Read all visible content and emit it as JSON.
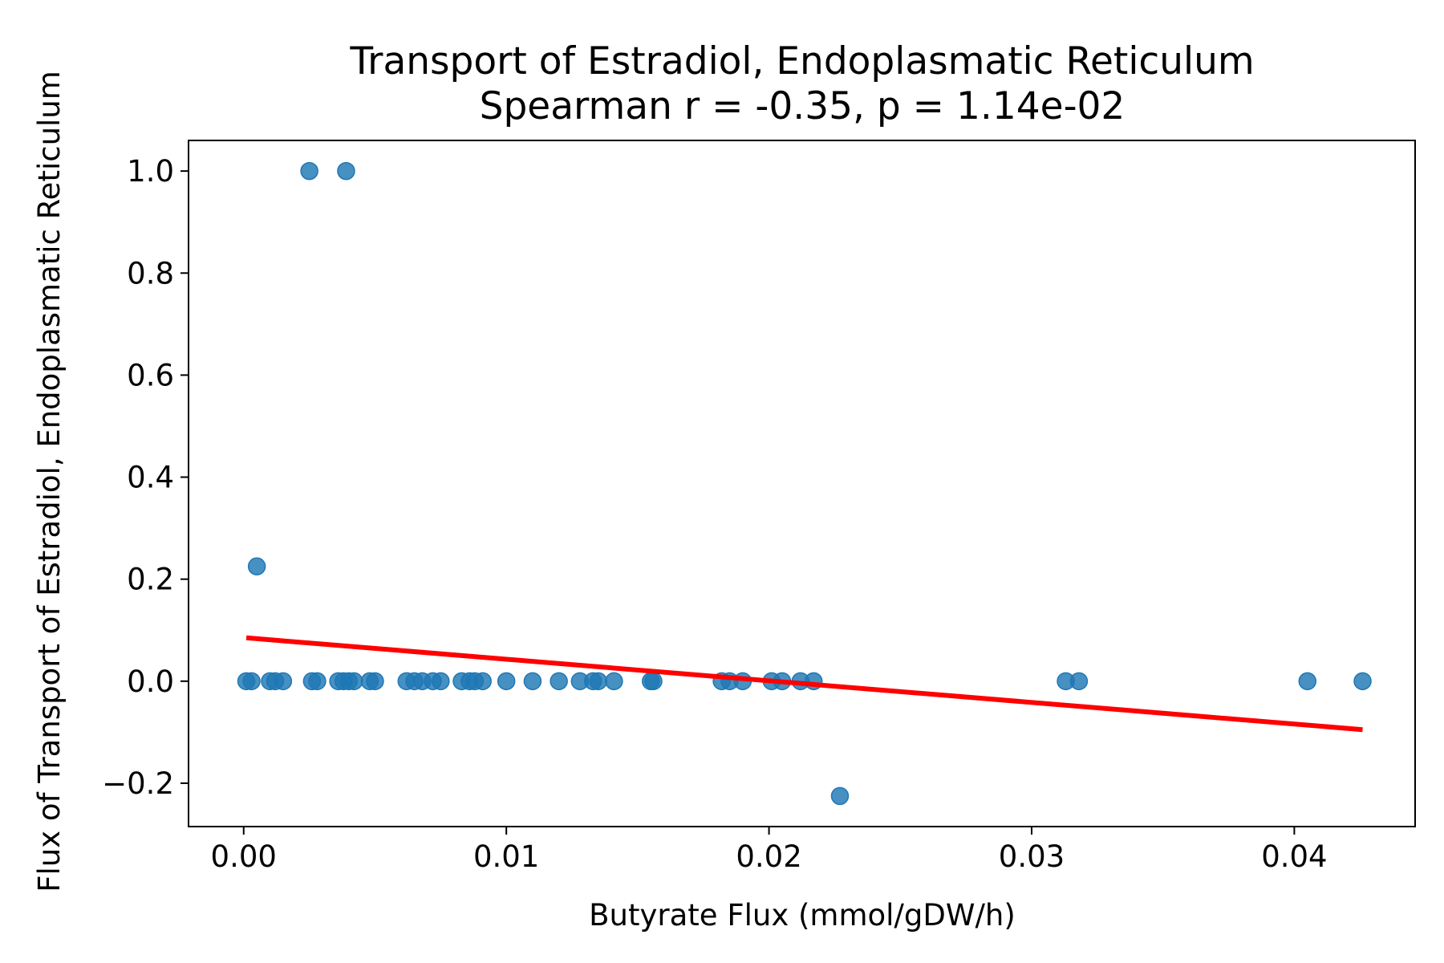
{
  "chart_data": {
    "type": "scatter",
    "title": "Transport of Estradiol, Endoplasmatic Reticulum",
    "subtitle": "Spearman r = -0.35, p = 1.14e-02",
    "xlabel": "Butyrate Flux (mmol/gDW/h)",
    "ylabel": "Flux of Transport of Estradiol, Endoplasmatic Reticulum",
    "xlim": [
      -0.0021,
      0.0446
    ],
    "ylim": [
      -0.285,
      1.06
    ],
    "x_ticks": [
      0.0,
      0.01,
      0.02,
      0.03,
      0.04
    ],
    "x_tick_labels": [
      "0.00",
      "0.01",
      "0.02",
      "0.03",
      "0.04"
    ],
    "y_ticks": [
      -0.2,
      0.0,
      0.2,
      0.4,
      0.6,
      0.8,
      1.0
    ],
    "y_tick_labels": [
      "−0.2",
      "0.0",
      "0.2",
      "0.4",
      "0.6",
      "0.8",
      "1.0"
    ],
    "grid": false,
    "colors": {
      "points": "#1f77b4",
      "fit_line": "#ff0000",
      "axes": "#000000"
    },
    "points": [
      {
        "x": 0.0025,
        "y": 1.0
      },
      {
        "x": 0.0039,
        "y": 1.0
      },
      {
        "x": 0.0005,
        "y": 0.225
      },
      {
        "x": 0.0001,
        "y": 0.0
      },
      {
        "x": 0.0003,
        "y": 0.0
      },
      {
        "x": 0.001,
        "y": 0.0
      },
      {
        "x": 0.0012,
        "y": 0.0
      },
      {
        "x": 0.0015,
        "y": 0.0
      },
      {
        "x": 0.0026,
        "y": 0.0
      },
      {
        "x": 0.0028,
        "y": 0.0
      },
      {
        "x": 0.0036,
        "y": 0.0
      },
      {
        "x": 0.0038,
        "y": 0.0
      },
      {
        "x": 0.004,
        "y": 0.0
      },
      {
        "x": 0.0042,
        "y": 0.0
      },
      {
        "x": 0.0048,
        "y": 0.0
      },
      {
        "x": 0.005,
        "y": 0.0
      },
      {
        "x": 0.0062,
        "y": 0.0
      },
      {
        "x": 0.0065,
        "y": 0.0
      },
      {
        "x": 0.0068,
        "y": 0.0
      },
      {
        "x": 0.0072,
        "y": 0.0
      },
      {
        "x": 0.0075,
        "y": 0.0
      },
      {
        "x": 0.0083,
        "y": 0.0
      },
      {
        "x": 0.0086,
        "y": 0.0
      },
      {
        "x": 0.0088,
        "y": 0.0
      },
      {
        "x": 0.0091,
        "y": 0.0
      },
      {
        "x": 0.01,
        "y": 0.0
      },
      {
        "x": 0.011,
        "y": 0.0
      },
      {
        "x": 0.012,
        "y": 0.0
      },
      {
        "x": 0.0128,
        "y": 0.0
      },
      {
        "x": 0.0133,
        "y": 0.0
      },
      {
        "x": 0.0135,
        "y": 0.0
      },
      {
        "x": 0.0141,
        "y": 0.0
      },
      {
        "x": 0.0155,
        "y": 0.0
      },
      {
        "x": 0.0156,
        "y": 0.0
      },
      {
        "x": 0.0182,
        "y": 0.0
      },
      {
        "x": 0.0185,
        "y": 0.0
      },
      {
        "x": 0.019,
        "y": 0.0
      },
      {
        "x": 0.0201,
        "y": 0.0
      },
      {
        "x": 0.0205,
        "y": 0.0
      },
      {
        "x": 0.0212,
        "y": 0.0
      },
      {
        "x": 0.0217,
        "y": 0.0
      },
      {
        "x": 0.0313,
        "y": 0.0
      },
      {
        "x": 0.0318,
        "y": 0.0
      },
      {
        "x": 0.0405,
        "y": 0.0
      },
      {
        "x": 0.0426,
        "y": 0.0
      },
      {
        "x": 0.0227,
        "y": -0.225
      }
    ],
    "fit_line": {
      "x": [
        0.0001,
        0.0426
      ],
      "y": [
        0.085,
        -0.095
      ]
    }
  }
}
